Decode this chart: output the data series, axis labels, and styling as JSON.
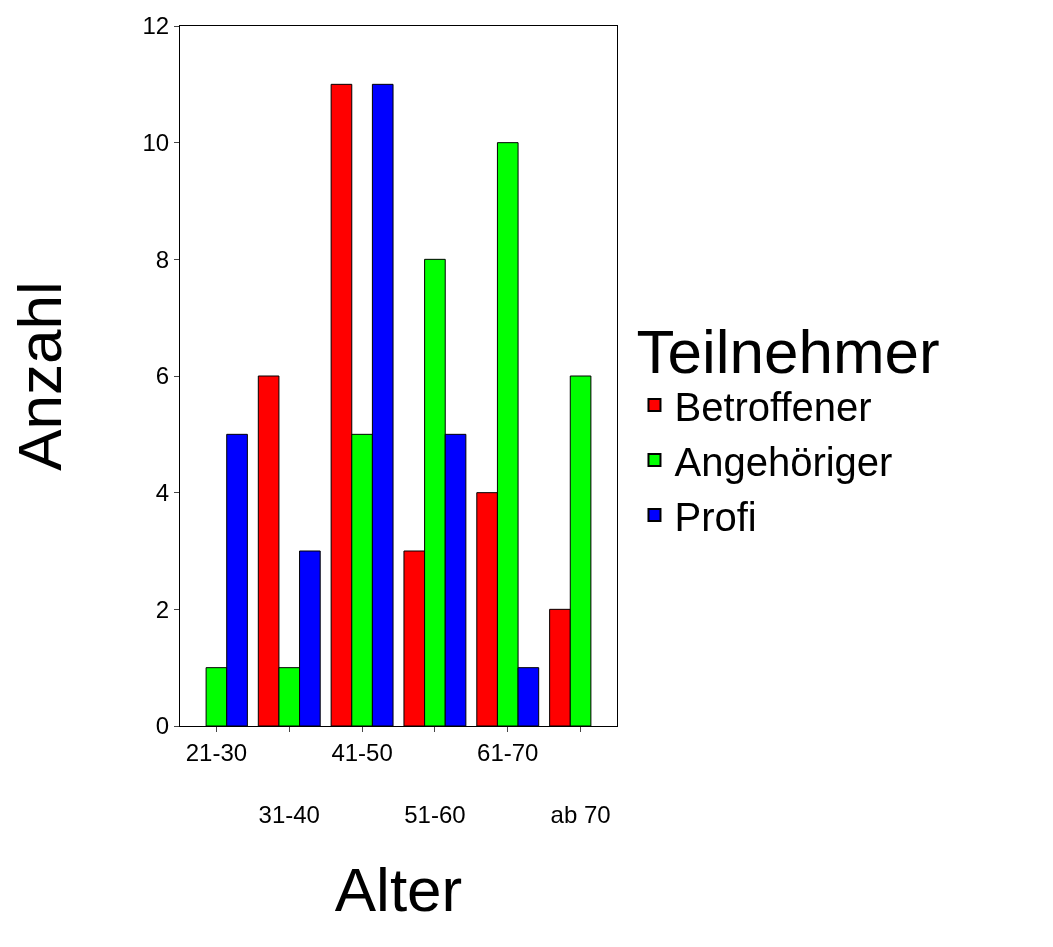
{
  "chart_data": {
    "type": "bar",
    "xlabel": "Alter",
    "ylabel": "Anzahl",
    "legend_title": "Teilnehmer",
    "categories": [
      "21-30",
      "31-40",
      "41-50",
      "51-60",
      "61-70",
      "ab 70"
    ],
    "series": [
      {
        "name": "Betroffener",
        "color": "#ff0000",
        "values": [
          null,
          6,
          11,
          3,
          4,
          2
        ]
      },
      {
        "name": "Angehöriger",
        "color": "#00ff00",
        "values": [
          1,
          1,
          5,
          8,
          10,
          6
        ]
      },
      {
        "name": "Profi",
        "color": "#0000ff",
        "values": [
          5,
          3,
          11,
          5,
          1,
          null
        ]
      }
    ],
    "ylim": [
      0,
      12
    ],
    "yticks": [
      0,
      2,
      4,
      6,
      8,
      10,
      12
    ],
    "legend": "right"
  }
}
